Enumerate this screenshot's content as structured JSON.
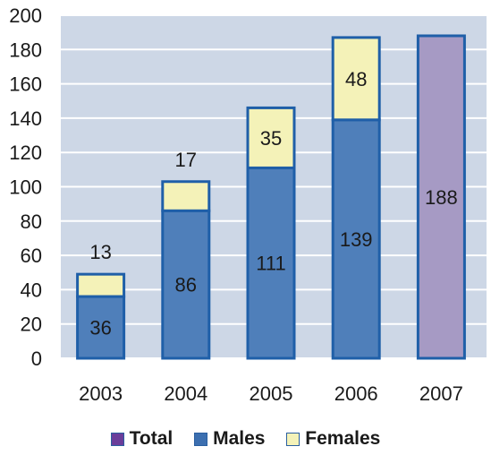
{
  "chart_data": {
    "type": "bar",
    "stacked": true,
    "categories": [
      "2003",
      "2004",
      "2005",
      "2006",
      "2007"
    ],
    "series": [
      {
        "name": "Total",
        "color": "#a69ac4",
        "values": [
          null,
          null,
          null,
          null,
          188
        ]
      },
      {
        "name": "Males",
        "color": "#4f7fba",
        "values": [
          36,
          86,
          111,
          139,
          null
        ]
      },
      {
        "name": "Females",
        "color": "#f4f2b8",
        "values": [
          13,
          17,
          35,
          48,
          null
        ]
      }
    ],
    "legend_swatch_colors": {
      "Total": "#6a3d9a",
      "Males": "#3c6fb0",
      "Females": "#f4f2b8"
    },
    "bar_border_color": "#1f5fa8",
    "plot_background": "#cdd7e6",
    "ylim": [
      0,
      200
    ],
    "yticks": [
      0,
      20,
      40,
      60,
      80,
      100,
      120,
      140,
      160,
      180,
      200
    ],
    "grid": true,
    "legend_position": "bottom",
    "title": "",
    "xlabel": "",
    "ylabel": ""
  }
}
